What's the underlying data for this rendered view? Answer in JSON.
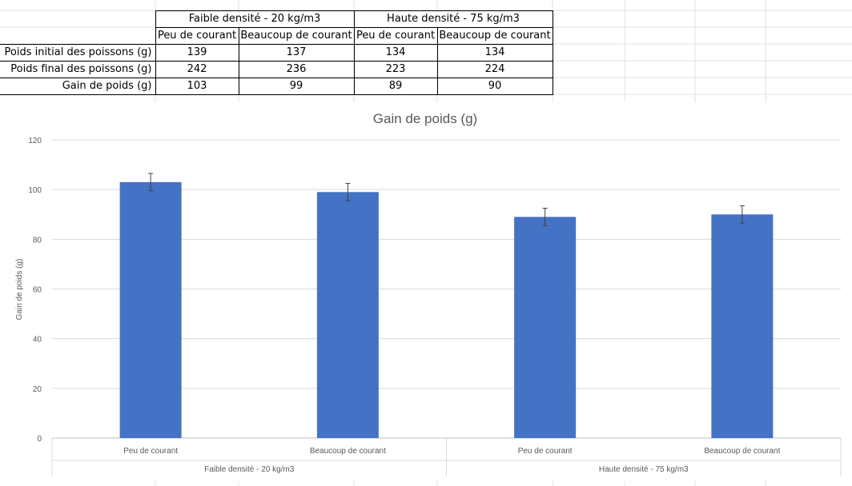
{
  "table": {
    "group_headers": [
      "Faible densité - 20 kg/m3",
      "Haute densité - 75 kg/m3"
    ],
    "sub_headers": [
      "Peu de courant",
      "Beaucoup de courant",
      "Peu de courant",
      "Beaucoup de courant"
    ],
    "rows": [
      {
        "label": "Poids initial des poissons (g)",
        "values": [
          "139",
          "137",
          "134",
          "134"
        ]
      },
      {
        "label": "Poids final des poissons (g)",
        "values": [
          "242",
          "236",
          "223",
          "224"
        ]
      },
      {
        "label": "Gain de poids (g)",
        "values": [
          "103",
          "99",
          "89",
          "90"
        ]
      }
    ]
  },
  "chart_data": {
    "type": "bar",
    "title": "Gain de poids (g)",
    "xlabel": "",
    "ylabel": "Gain de poids (g)",
    "ylim": [
      0,
      120
    ],
    "yticks": [
      0,
      20,
      40,
      60,
      80,
      100,
      120
    ],
    "grid": true,
    "legend": "none",
    "categories": [
      "Peu de courant",
      "Beaucoup de courant",
      "Peu de courant",
      "Beaucoup de courant"
    ],
    "groups": [
      {
        "label": "Faible densité - 20 kg/m3",
        "span": [
          0,
          1
        ]
      },
      {
        "label": "Haute densité - 75 kg/m3",
        "span": [
          2,
          3
        ]
      }
    ],
    "values": [
      103,
      99,
      89,
      90
    ],
    "error": [
      3.5,
      3.5,
      3.5,
      3.5
    ],
    "bar_color": "#4472c4"
  }
}
